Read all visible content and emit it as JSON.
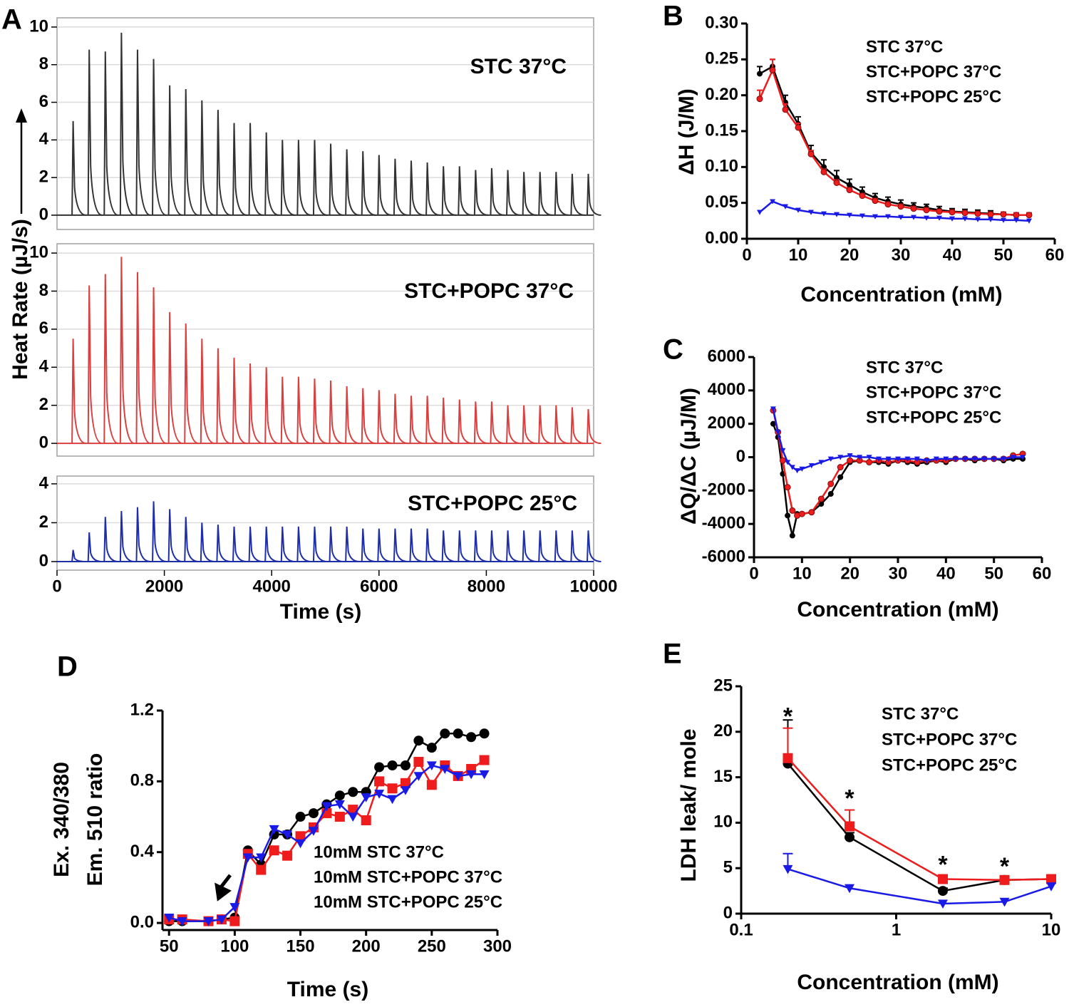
{
  "chart_data": [
    {
      "type": "spike",
      "panel": "A",
      "xlim": [
        0,
        10000
      ],
      "ylim": [
        -0.76,
        10.49
      ],
      "yticks": [
        0,
        2,
        4,
        6,
        8,
        10
      ],
      "grid": true,
      "x": [
        300,
        600,
        900,
        1200,
        1500,
        1800,
        2100,
        2400,
        2700,
        3000,
        3300,
        3600,
        3900,
        4200,
        4500,
        4800,
        5100,
        5400,
        5700,
        6000,
        6300,
        6600,
        6900,
        7200,
        7500,
        7800,
        8100,
        8400,
        8700,
        9000,
        9300,
        9600,
        9900
      ],
      "series": [
        {
          "name": "STC 37°C",
          "color": "#333333",
          "values": [
            5.0,
            8.8,
            8.7,
            9.7,
            8.8,
            8.3,
            6.9,
            6.7,
            6.1,
            5.6,
            4.9,
            4.9,
            4.4,
            4.0,
            4.0,
            4.0,
            3.8,
            3.5,
            3.4,
            3.2,
            3.0,
            2.9,
            2.8,
            2.6,
            2.6,
            2.4,
            2.5,
            2.4,
            2.3,
            2.3,
            2.3,
            2.2,
            2.2
          ]
        }
      ]
    },
    {
      "type": "spike",
      "ylabel": "Heat Rate (µJ/s)",
      "xlim": [
        0,
        10000
      ],
      "ylim": [
        -0.67,
        10.49
      ],
      "yticks": [
        0,
        2,
        4,
        6,
        8,
        10
      ],
      "grid": true,
      "x": [
        300,
        600,
        900,
        1200,
        1500,
        1800,
        2100,
        2400,
        2700,
        3000,
        3300,
        3600,
        3900,
        4200,
        4500,
        4800,
        5100,
        5400,
        5700,
        6000,
        6300,
        6600,
        6900,
        7200,
        7500,
        7800,
        8100,
        8400,
        8700,
        9000,
        9300,
        9600,
        9900
      ],
      "series": [
        {
          "name": "STC+POPC 37°C",
          "color": "#d94040",
          "values": [
            5.5,
            8.3,
            8.9,
            9.8,
            9.0,
            8.2,
            6.9,
            6.3,
            5.5,
            5.0,
            4.5,
            4.2,
            4.0,
            3.5,
            3.5,
            3.4,
            3.3,
            3.0,
            2.9,
            2.8,
            2.6,
            2.5,
            2.5,
            2.4,
            2.3,
            2.2,
            2.2,
            2.0,
            2.0,
            2.0,
            2.0,
            1.9,
            1.8
          ]
        }
      ]
    },
    {
      "type": "spike",
      "xlabel": "Time (s)",
      "xlim": [
        0,
        10000
      ],
      "xticks": [
        0,
        2000,
        4000,
        6000,
        8000,
        10000
      ],
      "ylim": [
        -0.44,
        4.4
      ],
      "yticks": [
        0,
        2,
        4
      ],
      "grid": true,
      "x": [
        300,
        600,
        900,
        1200,
        1500,
        1800,
        2100,
        2400,
        2700,
        3000,
        3300,
        3600,
        3900,
        4200,
        4500,
        4800,
        5100,
        5400,
        5700,
        6000,
        6300,
        6600,
        6900,
        7200,
        7500,
        7800,
        8100,
        8400,
        8700,
        9000,
        9300,
        9600,
        9900
      ],
      "series": [
        {
          "name": "STC+POPC 25°C",
          "color": "#1f2fa8",
          "values": [
            0.6,
            1.5,
            2.3,
            2.6,
            2.8,
            3.1,
            2.7,
            2.3,
            2.0,
            1.9,
            1.8,
            1.8,
            1.8,
            1.8,
            1.8,
            1.8,
            1.8,
            1.8,
            1.7,
            1.7,
            1.7,
            1.7,
            1.7,
            1.6,
            1.6,
            1.6,
            1.6,
            1.6,
            1.6,
            1.6,
            1.6,
            1.6,
            1.6
          ]
        }
      ]
    },
    {
      "type": "line",
      "panel": "B",
      "xlabel": "Concentration (mM)",
      "ylabel": "ΔH (J/M)",
      "xlim": [
        0,
        60
      ],
      "xticks": [
        0,
        10,
        20,
        30,
        40,
        50,
        60
      ],
      "ylim": [
        0,
        0.3
      ],
      "yticks": [
        {
          "value": 0,
          "label": "0.00"
        },
        {
          "value": 0.05,
          "label": "0.05"
        },
        {
          "value": 0.1,
          "label": "0.10"
        },
        {
          "value": 0.15,
          "label": "0.15"
        },
        {
          "value": 0.2,
          "label": "0.20"
        },
        {
          "value": 0.25,
          "label": "0.25"
        },
        {
          "value": 0.3,
          "label": "0.30"
        }
      ],
      "x": [
        2.5,
        5,
        7.5,
        10,
        12.5,
        15,
        17.5,
        20,
        22.5,
        25,
        27.5,
        30,
        32.5,
        35,
        37.5,
        40,
        42.5,
        45,
        47.5,
        50,
        52.5,
        55
      ],
      "series": [
        {
          "name": "STC 37°C",
          "color": "#000000",
          "marker": "circle",
          "values": [
            0.23,
            0.24,
            0.19,
            0.16,
            0.12,
            0.1,
            0.085,
            0.075,
            0.065,
            0.057,
            0.052,
            0.048,
            0.045,
            0.043,
            0.04,
            0.038,
            0.037,
            0.036,
            0.035,
            0.034,
            0.033,
            0.033
          ],
          "errors": [
            0.01,
            0.01,
            0.01,
            0.01,
            0.01,
            0.01,
            0.01,
            0.008,
            0.007,
            0.006,
            0.006,
            0.006,
            0.005,
            0.005,
            0.005,
            0.004,
            0.004,
            0.004,
            0.004,
            0.003,
            0.003,
            0.003
          ]
        },
        {
          "name": "STC+POPC 37°C",
          "color": "#ee1c1c",
          "marker": "circle",
          "values": [
            0.195,
            0.235,
            0.18,
            0.155,
            0.118,
            0.093,
            0.078,
            0.068,
            0.06,
            0.053,
            0.048,
            0.045,
            0.042,
            0.04,
            0.038,
            0.037,
            0.036,
            0.035,
            0.034,
            0.034,
            0.033,
            0.033
          ],
          "errors": [
            0.012,
            0.015,
            0.008,
            0.006,
            0.005,
            0.004,
            0.004,
            0.003,
            0.003,
            0.003,
            0.003,
            0.003,
            0.003,
            0.003,
            0.003,
            0.003,
            0.003,
            0.003,
            0.003,
            0.003,
            0.003,
            0.003
          ]
        },
        {
          "name": "STC+POPC 25°C",
          "color": "#1a1ae6",
          "marker": "triangle",
          "values": [
            0.037,
            0.052,
            0.045,
            0.04,
            0.037,
            0.035,
            0.034,
            0.033,
            0.032,
            0.031,
            0.031,
            0.03,
            0.03,
            0.029,
            0.029,
            0.028,
            0.028,
            0.027,
            0.027,
            0.026,
            0.026,
            0.025
          ]
        }
      ]
    },
    {
      "type": "line",
      "panel": "C",
      "xlabel": "Concentration (mM)",
      "ylabel": "ΔQ/ΔC (µJ/M)",
      "xlim": [
        0,
        60
      ],
      "xticks": [
        0,
        10,
        20,
        30,
        40,
        50,
        60
      ],
      "ylim": [
        -6000,
        6000
      ],
      "yticks": [
        -6000,
        -4000,
        -2000,
        0,
        2000,
        4000,
        6000
      ],
      "x": [
        4,
        5,
        6,
        7,
        8,
        9,
        10,
        12,
        14,
        16,
        18,
        20,
        22,
        24,
        26,
        28,
        30,
        32,
        34,
        36,
        38,
        40,
        42,
        44,
        46,
        48,
        50,
        52,
        54,
        56
      ],
      "series": [
        {
          "name": "STC 37°C",
          "color": "#000000",
          "marker": "circle",
          "values": [
            2000,
            1200,
            -1000,
            -3500,
            -4700,
            -3400,
            -3400,
            -3300,
            -2800,
            -2200,
            -1200,
            -300,
            -200,
            -300,
            -300,
            -400,
            -200,
            -300,
            -400,
            -300,
            -200,
            -300,
            -100,
            -100,
            -200,
            -100,
            -100,
            -200,
            -100,
            -100
          ]
        },
        {
          "name": "STC+POPC 37°C",
          "color": "#ee1c1c",
          "marker": "circle",
          "values": [
            2800,
            1500,
            -200,
            -1800,
            -3200,
            -3500,
            -3400,
            -3300,
            -2500,
            -1600,
            -600,
            -200,
            -200,
            -300,
            -200,
            -300,
            -200,
            -200,
            -300,
            -200,
            -200,
            -200,
            -100,
            -100,
            -100,
            -100,
            -100,
            -100,
            100,
            200
          ]
        },
        {
          "name": "STC+POPC 25°C",
          "color": "#1a1ae6",
          "marker": "triangle",
          "values": [
            2900,
            1500,
            400,
            -300,
            -600,
            -800,
            -700,
            -500,
            -300,
            -100,
            0,
            100,
            0,
            0,
            -100,
            -100,
            -100,
            -100,
            -100,
            -200,
            -100,
            -100,
            -100,
            -100,
            -100,
            -100,
            -100,
            -100,
            0,
            0
          ]
        }
      ]
    },
    {
      "type": "line",
      "panel": "D",
      "xlabel": "Time (s)",
      "ylabel": [
        "Ex. 340/380",
        "Em. 510 ratio"
      ],
      "xlim": [
        45,
        300
      ],
      "xticks": [
        50,
        100,
        150,
        200,
        250,
        300
      ],
      "ylim": [
        -0.04,
        1.2
      ],
      "yticks": [
        {
          "value": 0,
          "label": "0.0"
        },
        0.4,
        0.8,
        1.2
      ],
      "x": [
        50,
        60,
        80,
        90,
        100,
        110,
        120,
        130,
        140,
        150,
        160,
        170,
        180,
        190,
        200,
        210,
        220,
        230,
        240,
        250,
        260,
        270,
        280,
        290
      ],
      "series": [
        {
          "name": "10mM STC 37°C",
          "color": "#000000",
          "marker": "circle",
          "values": [
            0.01,
            0.01,
            0.01,
            0.02,
            0.03,
            0.41,
            0.33,
            0.5,
            0.5,
            0.6,
            0.62,
            0.67,
            0.72,
            0.74,
            0.74,
            0.88,
            0.89,
            0.89,
            1.03,
            0.99,
            1.07,
            1.07,
            1.05,
            1.07
          ]
        },
        {
          "name": "10mM STC+POPC 37°C",
          "color": "#ee1c1c",
          "marker": "square",
          "values": [
            0.02,
            0.02,
            0.01,
            0.02,
            0.01,
            0.39,
            0.3,
            0.41,
            0.38,
            0.49,
            0.54,
            0.62,
            0.6,
            0.64,
            0.58,
            0.8,
            0.76,
            0.79,
            0.91,
            0.78,
            0.89,
            0.83,
            0.87,
            0.92
          ]
        },
        {
          "name": "10mM STC+POPC 25°C",
          "color": "#1a1ae6",
          "marker": "triangle",
          "values": [
            0.03,
            0.01,
            0.01,
            0.02,
            0.09,
            0.37,
            0.37,
            0.53,
            0.5,
            0.45,
            0.52,
            0.66,
            0.67,
            0.6,
            0.71,
            0.73,
            0.7,
            0.75,
            0.83,
            0.89,
            0.87,
            0.83,
            0.84,
            0.84
          ]
        }
      ]
    },
    {
      "type": "line",
      "panel": "E",
      "xlabel": "Concentration (mM)",
      "ylabel": "LDH leak/ mole",
      "xscale": "log",
      "xlim": [
        0.1,
        10
      ],
      "xticks": [
        0.1,
        1,
        10
      ],
      "ylim": [
        0,
        25
      ],
      "yticks": [
        0,
        5,
        10,
        15,
        20,
        25
      ],
      "x": [
        0.2,
        0.5,
        2,
        5,
        10
      ],
      "series": [
        {
          "name": "STC 37°C",
          "color": "#000000",
          "marker": "circle",
          "values": [
            16.5,
            8.4,
            2.5,
            3.7,
            3.8
          ],
          "errors": [
            4.8,
            0.5,
            0.3,
            0.2,
            0.2
          ]
        },
        {
          "name": "STC+POPC 37°C",
          "color": "#ee1c1c",
          "marker": "square",
          "values": [
            17.1,
            9.6,
            3.8,
            3.7,
            3.8
          ],
          "errors": [
            3.3,
            1.8,
            0.3,
            0.2,
            0.2
          ],
          "significance": [
            "*",
            "*",
            "*",
            "*",
            null
          ]
        },
        {
          "name": "STC+POPC 25°C",
          "color": "#1a1ae6",
          "marker": "triangle",
          "values": [
            4.9,
            2.8,
            1.1,
            1.3,
            3.0
          ],
          "errors": [
            1.7,
            null,
            null,
            null,
            null
          ]
        }
      ]
    }
  ]
}
